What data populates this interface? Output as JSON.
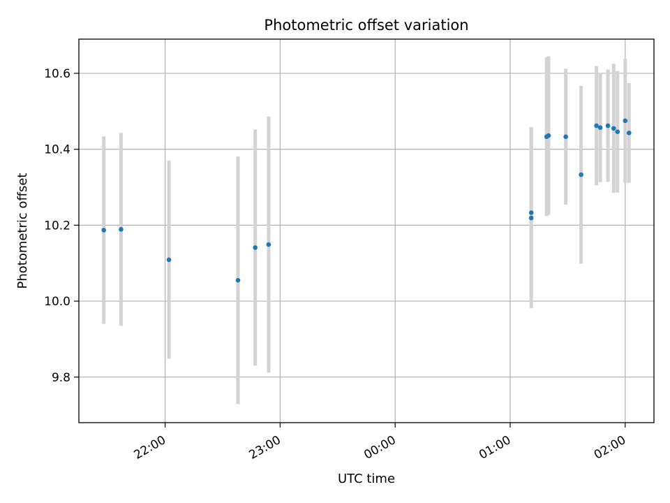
{
  "chart_data": {
    "type": "scatter",
    "title": "Photometric offset variation",
    "xlabel": "UTC time",
    "ylabel": "Photometric offset",
    "x_tick_labels": [
      "22:00",
      "23:00",
      "00:00",
      "01:00",
      "02:00"
    ],
    "y_tick_labels": [
      "9.8",
      "10.0",
      "10.2",
      "10.4",
      "10.6"
    ],
    "y_ticks": [
      9.8,
      10.0,
      10.2,
      10.4,
      10.6
    ],
    "xlim": [
      "21:15",
      "02:15"
    ],
    "ylim": [
      9.68,
      10.69
    ],
    "grid": true,
    "colors": {
      "point": "#1f77b4",
      "errorbar": "#d3d3d3",
      "grid": "#b0b0b0",
      "axes": "#000000"
    },
    "points": [
      {
        "time": "21:28",
        "y": 10.187,
        "yerr": 0.247
      },
      {
        "time": "21:37",
        "y": 10.189,
        "yerr": 0.254
      },
      {
        "time": "22:02",
        "y": 10.109,
        "yerr": 0.261
      },
      {
        "time": "22:38",
        "y": 10.055,
        "yerr": 0.326
      },
      {
        "time": "22:47",
        "y": 10.141,
        "yerr": 0.311
      },
      {
        "time": "22:54",
        "y": 10.149,
        "yerr": 0.337
      },
      {
        "time": "01:11",
        "y": 10.219,
        "yerr": 0.237
      },
      {
        "time": "01:11",
        "y": 10.233,
        "yerr": 0.225
      },
      {
        "time": "01:19",
        "y": 10.433,
        "yerr": 0.209
      },
      {
        "time": "01:20",
        "y": 10.436,
        "yerr": 0.209
      },
      {
        "time": "01:29",
        "y": 10.433,
        "yerr": 0.179
      },
      {
        "time": "01:37",
        "y": 10.333,
        "yerr": 0.234
      },
      {
        "time": "01:45",
        "y": 10.462,
        "yerr": 0.157
      },
      {
        "time": "01:47",
        "y": 10.457,
        "yerr": 0.144
      },
      {
        "time": "01:51",
        "y": 10.462,
        "yerr": 0.148
      },
      {
        "time": "01:54",
        "y": 10.455,
        "yerr": 0.17
      },
      {
        "time": "01:56",
        "y": 10.446,
        "yerr": 0.16
      },
      {
        "time": "02:00",
        "y": 10.475,
        "yerr": 0.163
      },
      {
        "time": "02:02",
        "y": 10.443,
        "yerr": 0.131
      }
    ]
  }
}
